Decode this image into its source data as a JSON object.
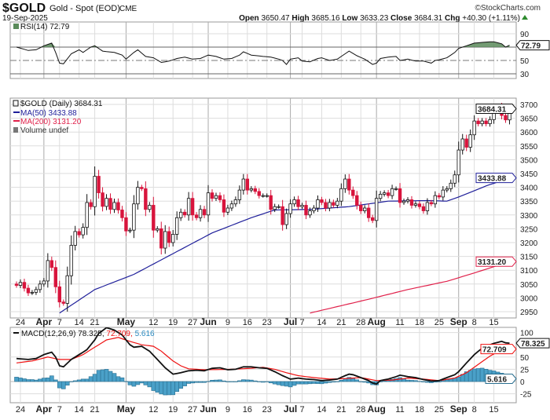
{
  "header": {
    "symbol": "$GOLD",
    "name": "Gold - Spot (EOD)",
    "exchange": "CME",
    "date": "19-Sep-2025",
    "watermark": "©StockCharts.com",
    "open_label": "Open",
    "open": "3650.47",
    "high_label": "High",
    "high": "3685.16",
    "low_label": "Low",
    "low": "3633.23",
    "close_label": "Close",
    "close": "3684.31",
    "chg_label": "Chg",
    "chg": "+40.30 (+1.11%)",
    "up_color": "#2e8b2e"
  },
  "legends": {
    "rsi": "RSI(14) 72.79",
    "price": "$GOLD (Daily) 3684.31",
    "ma50": "MA(50) 3433.88",
    "ma200": "MA(200) 3131.20",
    "volume": "Volume undef",
    "macd": "MACD(12,26,9) 78.325,",
    "macd_signal": "72.709,",
    "macd_hist": "5.616"
  },
  "value_tags": {
    "rsi": "72.79",
    "price": "3684.31",
    "ma50": "3433.88",
    "ma200": "3131.20",
    "macd": "78.325",
    "macd_signal": "72.709",
    "macd_hist": "5.616"
  },
  "colors": {
    "down": "#d8143c",
    "ma50": "#1f1f9a",
    "ma200": "#e0204a",
    "rsi_fill": "#5a8a5a",
    "macd_signal": "#ee1111",
    "hist": "#4aa0c8"
  },
  "chart_data": [
    {
      "type": "candlestick",
      "title": "$GOLD (Daily)",
      "ylim": [
        2930,
        3723
      ],
      "yticks": [
        2950,
        3000,
        3050,
        3100,
        3150,
        3200,
        3250,
        3300,
        3350,
        3400,
        3450,
        3500,
        3550,
        3600,
        3650,
        3700
      ],
      "xticks": [
        {
          "label": "24",
          "i": 1,
          "month": false
        },
        {
          "label": "Apr",
          "i": 7,
          "month": true
        },
        {
          "label": "7",
          "i": 11,
          "month": false
        },
        {
          "label": "14",
          "i": 16,
          "month": false
        },
        {
          "label": "21",
          "i": 20,
          "month": false
        },
        {
          "label": "May",
          "i": 28,
          "month": true
        },
        {
          "label": "12",
          "i": 35,
          "month": false
        },
        {
          "label": "19",
          "i": 40,
          "month": false
        },
        {
          "label": "27",
          "i": 45,
          "month": false
        },
        {
          "label": "Jun",
          "i": 49,
          "month": true
        },
        {
          "label": "9",
          "i": 54,
          "month": false
        },
        {
          "label": "16",
          "i": 59,
          "month": false
        },
        {
          "label": "23",
          "i": 64,
          "month": false
        },
        {
          "label": "Jul",
          "i": 70,
          "month": true
        },
        {
          "label": "7",
          "i": 73,
          "month": false
        },
        {
          "label": "14",
          "i": 78,
          "month": false
        },
        {
          "label": "21",
          "i": 83,
          "month": false
        },
        {
          "label": "28",
          "i": 88,
          "month": false
        },
        {
          "label": "Aug",
          "i": 92,
          "month": true
        },
        {
          "label": "11",
          "i": 98,
          "month": false
        },
        {
          "label": "18",
          "i": 103,
          "month": false
        },
        {
          "label": "25",
          "i": 108,
          "month": false
        },
        {
          "label": "Sep",
          "i": 113,
          "month": true
        },
        {
          "label": "8",
          "i": 117,
          "month": false
        },
        {
          "label": "15",
          "i": 122,
          "month": false
        }
      ],
      "first_open": 3050,
      "closes": [
        3045,
        3056,
        3035,
        3018,
        3020,
        3030,
        3050,
        3061,
        3135,
        3110,
        3040,
        2985,
        2980,
        3080,
        3190,
        3240,
        3228,
        3255,
        3345,
        3330,
        3440,
        3380,
        3331,
        3360,
        3320,
        3345,
        3318,
        3290,
        3242,
        3245,
        3340,
        3400,
        3395,
        3320,
        3335,
        3245,
        3250,
        3180,
        3240,
        3200,
        3230,
        3290,
        3310,
        3300,
        3360,
        3300,
        3290,
        3320,
        3300,
        3380,
        3360,
        3370,
        3355,
        3310,
        3325,
        3340,
        3355,
        3390,
        3430,
        3390,
        3395,
        3385,
        3370,
        3370,
        3370,
        3320,
        3330,
        3330,
        3265,
        3305,
        3340,
        3355,
        3330,
        3335,
        3300,
        3315,
        3325,
        3355,
        3345,
        3325,
        3345,
        3335,
        3350,
        3395,
        3430,
        3390,
        3370,
        3335,
        3315,
        3325,
        3290,
        3280,
        3360,
        3375,
        3380,
        3370,
        3395,
        3395,
        3345,
        3350,
        3355,
        3335,
        3340,
        3330,
        3315,
        3345,
        3340,
        3370,
        3365,
        3390,
        3395,
        3415,
        3445,
        3535,
        3575,
        3545,
        3590,
        3640,
        3630,
        3640,
        3630,
        3645,
        3680,
        3690,
        3660,
        3644,
        3684.31
      ],
      "ma50": [
        [
          11,
          2945
        ],
        [
          20,
          3030
        ],
        [
          30,
          3085
        ],
        [
          40,
          3160
        ],
        [
          50,
          3235
        ],
        [
          60,
          3290
        ],
        [
          66,
          3318
        ],
        [
          75,
          3320
        ],
        [
          85,
          3330
        ],
        [
          95,
          3350
        ],
        [
          105,
          3352
        ],
        [
          110,
          3350
        ],
        [
          113,
          3365
        ],
        [
          120,
          3405
        ],
        [
          126,
          3433.88
        ]
      ],
      "ma200": [
        [
          75,
          2945
        ],
        [
          90,
          2995
        ],
        [
          100,
          3030
        ],
        [
          110,
          3060
        ],
        [
          117,
          3090
        ],
        [
          126,
          3131.2
        ]
      ]
    },
    {
      "type": "line",
      "title": "RSI(14)",
      "ylim": [
        20,
        105
      ],
      "yticks": [
        30,
        50,
        70,
        90
      ],
      "values": [
        [
          0,
          70
        ],
        [
          3,
          65
        ],
        [
          5,
          66
        ],
        [
          7,
          72
        ],
        [
          9,
          76
        ],
        [
          10,
          62
        ],
        [
          11,
          46
        ],
        [
          12,
          45
        ],
        [
          14,
          60
        ],
        [
          16,
          66
        ],
        [
          17,
          62
        ],
        [
          19,
          70
        ],
        [
          20,
          72
        ],
        [
          21,
          68
        ],
        [
          22,
          64
        ],
        [
          25,
          62
        ],
        [
          27,
          58
        ],
        [
          28,
          52
        ],
        [
          30,
          62
        ],
        [
          31,
          66
        ],
        [
          33,
          56
        ],
        [
          35,
          54
        ],
        [
          37,
          47
        ],
        [
          39,
          49
        ],
        [
          41,
          53
        ],
        [
          43,
          55
        ],
        [
          45,
          52
        ],
        [
          47,
          53
        ],
        [
          49,
          58
        ],
        [
          51,
          56
        ],
        [
          53,
          52
        ],
        [
          55,
          53
        ],
        [
          57,
          58
        ],
        [
          58,
          63
        ],
        [
          60,
          58
        ],
        [
          63,
          56
        ],
        [
          65,
          55
        ],
        [
          67,
          52
        ],
        [
          68,
          50
        ],
        [
          69,
          44
        ],
        [
          70,
          52
        ],
        [
          72,
          54
        ],
        [
          73,
          49
        ],
        [
          75,
          48
        ],
        [
          77,
          53
        ],
        [
          78,
          54
        ],
        [
          80,
          50
        ],
        [
          82,
          52
        ],
        [
          83,
          56
        ],
        [
          85,
          64
        ],
        [
          87,
          57
        ],
        [
          89,
          52
        ],
        [
          91,
          44
        ],
        [
          92,
          46
        ],
        [
          93,
          53
        ],
        [
          95,
          55
        ],
        [
          97,
          56
        ],
        [
          98,
          50
        ],
        [
          100,
          52
        ],
        [
          102,
          49
        ],
        [
          104,
          49
        ],
        [
          106,
          46
        ],
        [
          107,
          50
        ],
        [
          108,
          51
        ],
        [
          110,
          54
        ],
        [
          111,
          58
        ],
        [
          112,
          62
        ],
        [
          113,
          68
        ],
        [
          115,
          72
        ],
        [
          117,
          76
        ],
        [
          119,
          77
        ],
        [
          121,
          78
        ],
        [
          122,
          78
        ],
        [
          124,
          75
        ],
        [
          125,
          70
        ],
        [
          126,
          72.79
        ]
      ]
    },
    {
      "type": "line",
      "title": "MACD(12,26,9)",
      "ylim": [
        -40,
        110
      ],
      "yticks": [
        -25,
        0,
        25,
        50,
        100
      ],
      "macd": [
        [
          0,
          47
        ],
        [
          3,
          45
        ],
        [
          5,
          47
        ],
        [
          7,
          55
        ],
        [
          9,
          60
        ],
        [
          10,
          50
        ],
        [
          11,
          32
        ],
        [
          12,
          30
        ],
        [
          14,
          45
        ],
        [
          16,
          55
        ],
        [
          18,
          65
        ],
        [
          20,
          85
        ],
        [
          21,
          98
        ],
        [
          23,
          110
        ],
        [
          25,
          105
        ],
        [
          27,
          95
        ],
        [
          28,
          85
        ],
        [
          29,
          75
        ],
        [
          30,
          70
        ],
        [
          32,
          72
        ],
        [
          34,
          62
        ],
        [
          36,
          45
        ],
        [
          38,
          28
        ],
        [
          40,
          15
        ],
        [
          42,
          18
        ],
        [
          44,
          22
        ],
        [
          46,
          23
        ],
        [
          48,
          22
        ],
        [
          50,
          27
        ],
        [
          52,
          28
        ],
        [
          54,
          24
        ],
        [
          56,
          25
        ],
        [
          58,
          30
        ],
        [
          60,
          30
        ],
        [
          62,
          28
        ],
        [
          64,
          27
        ],
        [
          66,
          20
        ],
        [
          68,
          12
        ],
        [
          70,
          5
        ],
        [
          72,
          7
        ],
        [
          74,
          5
        ],
        [
          76,
          4
        ],
        [
          78,
          2
        ],
        [
          80,
          3
        ],
        [
          82,
          5
        ],
        [
          84,
          12
        ],
        [
          85,
          15
        ],
        [
          86,
          14
        ],
        [
          88,
          8
        ],
        [
          90,
          2
        ],
        [
          91,
          -3
        ],
        [
          92,
          -5
        ],
        [
          93,
          2
        ],
        [
          95,
          5
        ],
        [
          97,
          10
        ],
        [
          98,
          13
        ],
        [
          100,
          10
        ],
        [
          102,
          8
        ],
        [
          104,
          4
        ],
        [
          106,
          1
        ],
        [
          108,
          2
        ],
        [
          110,
          8
        ],
        [
          112,
          14
        ],
        [
          113,
          20
        ],
        [
          115,
          38
        ],
        [
          117,
          55
        ],
        [
          119,
          68
        ],
        [
          121,
          75
        ],
        [
          122,
          78
        ],
        [
          124,
          82
        ],
        [
          125,
          79
        ],
        [
          126,
          78.325
        ]
      ],
      "signal": [
        [
          0,
          38
        ],
        [
          4,
          42
        ],
        [
          8,
          50
        ],
        [
          11,
          45
        ],
        [
          14,
          45
        ],
        [
          17,
          55
        ],
        [
          20,
          70
        ],
        [
          23,
          85
        ],
        [
          26,
          90
        ],
        [
          29,
          82
        ],
        [
          32,
          75
        ],
        [
          35,
          72
        ],
        [
          37,
          62
        ],
        [
          40,
          42
        ],
        [
          42,
          32
        ],
        [
          44,
          26
        ],
        [
          48,
          24
        ],
        [
          55,
          25
        ],
        [
          60,
          27
        ],
        [
          63,
          29
        ],
        [
          66,
          25
        ],
        [
          69,
          18
        ],
        [
          72,
          12
        ],
        [
          76,
          8
        ],
        [
          80,
          5
        ],
        [
          84,
          6
        ],
        [
          88,
          8
        ],
        [
          92,
          2
        ],
        [
          96,
          3
        ],
        [
          100,
          7
        ],
        [
          104,
          5
        ],
        [
          108,
          2
        ],
        [
          112,
          7
        ],
        [
          115,
          18
        ],
        [
          118,
          35
        ],
        [
          121,
          52
        ],
        [
          124,
          65
        ],
        [
          126,
          72.709
        ]
      ]
    }
  ]
}
